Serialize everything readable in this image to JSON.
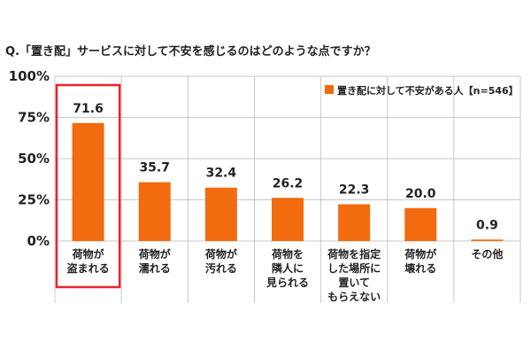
{
  "colors": {
    "bar": "#F26B0F",
    "highlight_box": "#E8252B",
    "grid": "#c8c8c8",
    "text": "#222222"
  },
  "chart_data": {
    "type": "bar",
    "title": "Q.「置き配」サービスに対して不安を感じるのはどのような点ですか？",
    "xlabel": "",
    "ylabel": "",
    "ylim": [
      0,
      100
    ],
    "y_ticks": [
      "0%",
      "25%",
      "50%",
      "75%",
      "100%"
    ],
    "grid": true,
    "legend_position": "top-right",
    "highlighted_category_index": 0,
    "categories": [
      [
        "荷物が",
        "盗まれる"
      ],
      [
        "荷物が",
        "濡れる"
      ],
      [
        "荷物が",
        "汚れる"
      ],
      [
        "荷物を",
        "隣人に",
        "見られる"
      ],
      [
        "荷物を指定",
        "した場所に",
        "置いて",
        "もらえない"
      ],
      [
        "荷物が",
        "壊れる"
      ],
      [
        "その他"
      ]
    ],
    "series": [
      {
        "name": "置き配に対して不安がある人【n=546】",
        "values": [
          71.6,
          35.7,
          32.4,
          26.2,
          22.3,
          20.0,
          0.9
        ],
        "data_labels": [
          "71.6",
          "35.7",
          "32.4",
          "26.2",
          "22.3",
          "20.0",
          "0.9"
        ]
      }
    ]
  }
}
